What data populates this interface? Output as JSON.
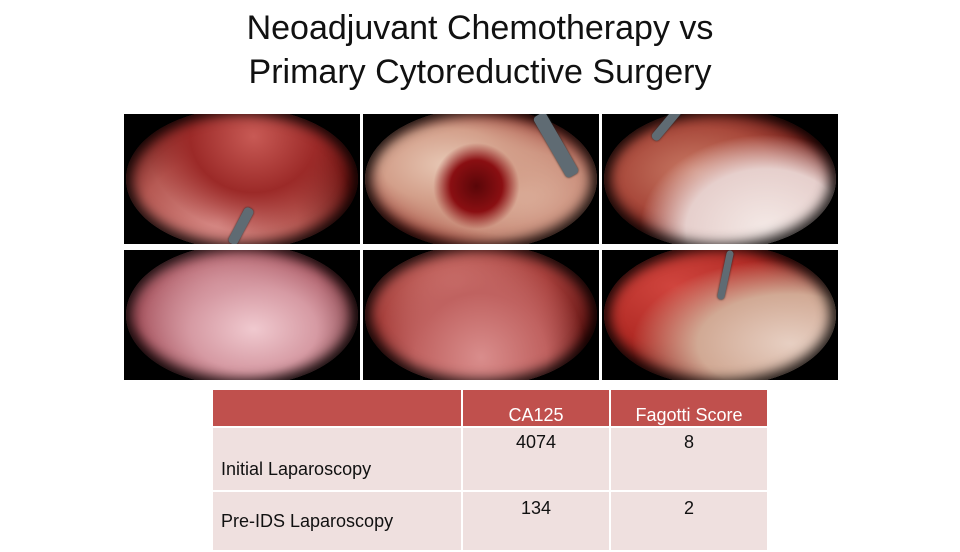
{
  "title": {
    "line1": "Neoadjuvant Chemotherapy vs",
    "line2": "Primary Cytoreductive Surgery"
  },
  "table": {
    "columns": [
      "",
      "CA125",
      "Fagotti Score"
    ],
    "rows": [
      {
        "label": "Initial Laparoscopy",
        "ca125": "4074",
        "fagotti": "8"
      },
      {
        "label": "Pre-IDS Laparoscopy",
        "ca125": "134",
        "fagotti": "2"
      }
    ]
  },
  "colors": {
    "header": "#c0504d",
    "cell": "#efe0df"
  }
}
